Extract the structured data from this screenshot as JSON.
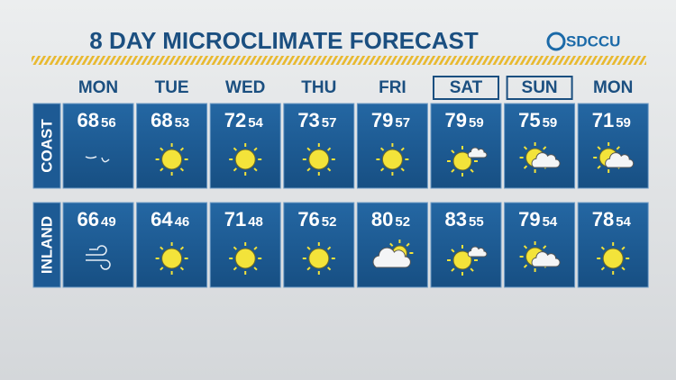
{
  "header": {
    "title": "8 DAY MICROCLIMATE FORECAST",
    "logo": "SDCCU"
  },
  "days": [
    "MON",
    "TUE",
    "WED",
    "THU",
    "FRI",
    "SAT",
    "SUN",
    "MON"
  ],
  "rows": [
    {
      "label": "COAST",
      "highs": [
        68,
        68,
        72,
        73,
        79,
        79,
        75,
        71
      ],
      "lows": [
        56,
        53,
        54,
        57,
        57,
        59,
        59,
        59
      ]
    },
    {
      "label": "INLAND",
      "highs": [
        66,
        64,
        71,
        76,
        80,
        83,
        79,
        78
      ],
      "lows": [
        49,
        46,
        48,
        52,
        52,
        55,
        54,
        54
      ]
    }
  ]
}
